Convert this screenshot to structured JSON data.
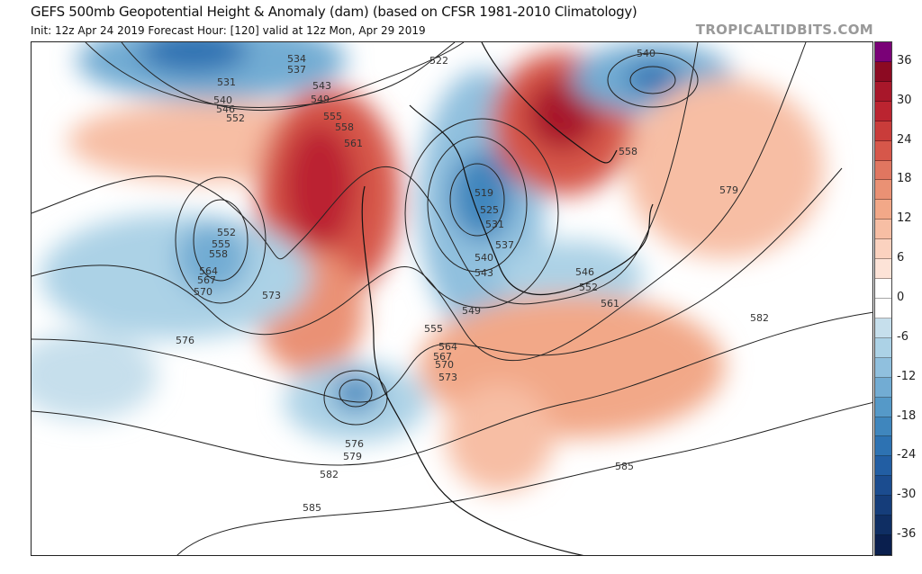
{
  "header": {
    "title": "GEFS 500mb Geopotential Height & Anomaly (dam) (based on CFSR 1981-2010 Climatology)",
    "subtitle": "Init: 12z Apr 24 2019   Forecast Hour: [120]   valid at 12z Mon, Apr 29 2019",
    "brand": "TROPICALTIDBITS.COM"
  },
  "colorbar": {
    "ticks": [
      "36",
      "30",
      "24",
      "18",
      "12",
      "6",
      "0",
      "-6",
      "-12",
      "-18",
      "-24",
      "-30",
      "-36"
    ],
    "colors": [
      "#7a0177",
      "#8c0a22",
      "#a8172a",
      "#bb2430",
      "#c93c3a",
      "#d6574a",
      "#e07660",
      "#ea9174",
      "#f2a888",
      "#f7bea4",
      "#fbd2bf",
      "#fde3d7",
      "#ffffff",
      "#ffffff",
      "#c6dfec",
      "#acd2e6",
      "#90c0de",
      "#72acd3",
      "#5599c8",
      "#3f86bd",
      "#2d72b2",
      "#225ea3",
      "#1b4c8f",
      "#153d7a",
      "#0f2e63",
      "#0a1f4e"
    ]
  },
  "contour_labels": [
    "534",
    "537",
    "543",
    "540",
    "546",
    "549",
    "552",
    "555",
    "558",
    "561",
    "531",
    "522",
    "519",
    "525",
    "531",
    "537",
    "540",
    "543",
    "546",
    "549",
    "552",
    "555",
    "561",
    "564",
    "567",
    "570",
    "573",
    "552",
    "555",
    "558",
    "564",
    "567",
    "570",
    "573",
    "576",
    "576",
    "579",
    "582",
    "585",
    "585",
    "582",
    "579",
    "558",
    "540"
  ]
}
